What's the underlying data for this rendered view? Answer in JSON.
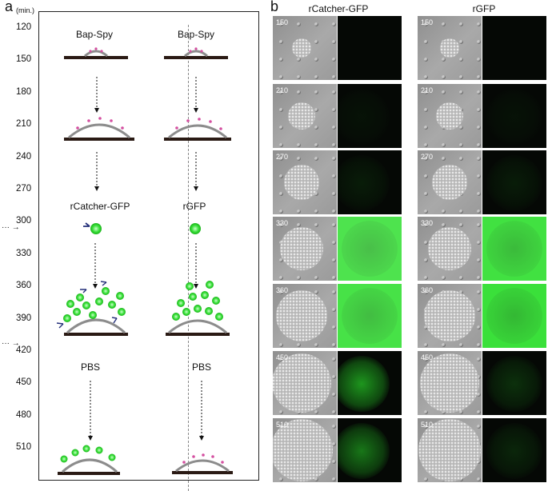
{
  "panels": {
    "a": "a",
    "b": "b"
  },
  "time_unit": "(min.)",
  "times": [
    "120",
    "150",
    "180",
    "210",
    "240",
    "270",
    "300",
    "330",
    "360",
    "390",
    "420",
    "450",
    "480",
    "510"
  ],
  "panel_a": {
    "left": {
      "step1": "Bap-Spy",
      "step2": "rCatcher-GFP",
      "step3": "PBS"
    },
    "right": {
      "step1": "Bap-Spy",
      "step2": "rGFP",
      "step3": "PBS"
    }
  },
  "panel_b": {
    "columns": [
      "rCatcher-GFP",
      "rGFP"
    ],
    "row_times": [
      "150",
      "210",
      "270",
      "330",
      "360",
      "450",
      "510"
    ],
    "rcatcher_fluor": [
      0.0,
      0.05,
      0.1,
      0.75,
      0.8,
      0.7,
      0.55
    ],
    "rgfp_fluor": [
      0.0,
      0.05,
      0.1,
      0.85,
      0.9,
      0.2,
      0.15
    ],
    "colors": {
      "gfp": "#22dd22",
      "dark": "#050805"
    }
  }
}
